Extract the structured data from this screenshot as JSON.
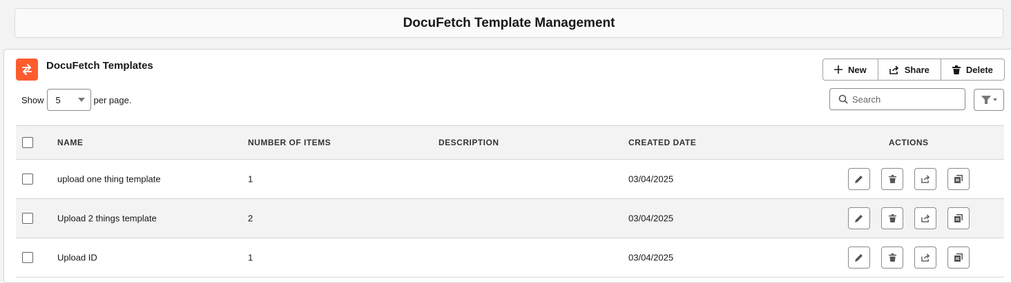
{
  "page_title": "DocuFetch Template Management",
  "card": {
    "title": "DocuFetch Templates",
    "logo_icon": "swap-arrows-icon",
    "accent": "#fe5c2e"
  },
  "toolbar": {
    "new_label": "New",
    "share_label": "Share",
    "delete_label": "Delete"
  },
  "pagination": {
    "show_label": "Show",
    "per_page_value": "5",
    "per_page_label": "per page."
  },
  "search": {
    "placeholder": "Search"
  },
  "table": {
    "headers": {
      "name": "NAME",
      "items": "NUMBER OF ITEMS",
      "description": "DESCRIPTION",
      "created": "CREATED DATE",
      "actions": "ACTIONS"
    },
    "rows": [
      {
        "name": "upload one thing template",
        "items": "1",
        "description": "",
        "created": "03/04/2025"
      },
      {
        "name": "Upload 2 things template",
        "items": "2",
        "description": "",
        "created": "03/04/2025"
      },
      {
        "name": "Upload ID",
        "items": "1",
        "description": "",
        "created": "03/04/2025"
      }
    ]
  }
}
